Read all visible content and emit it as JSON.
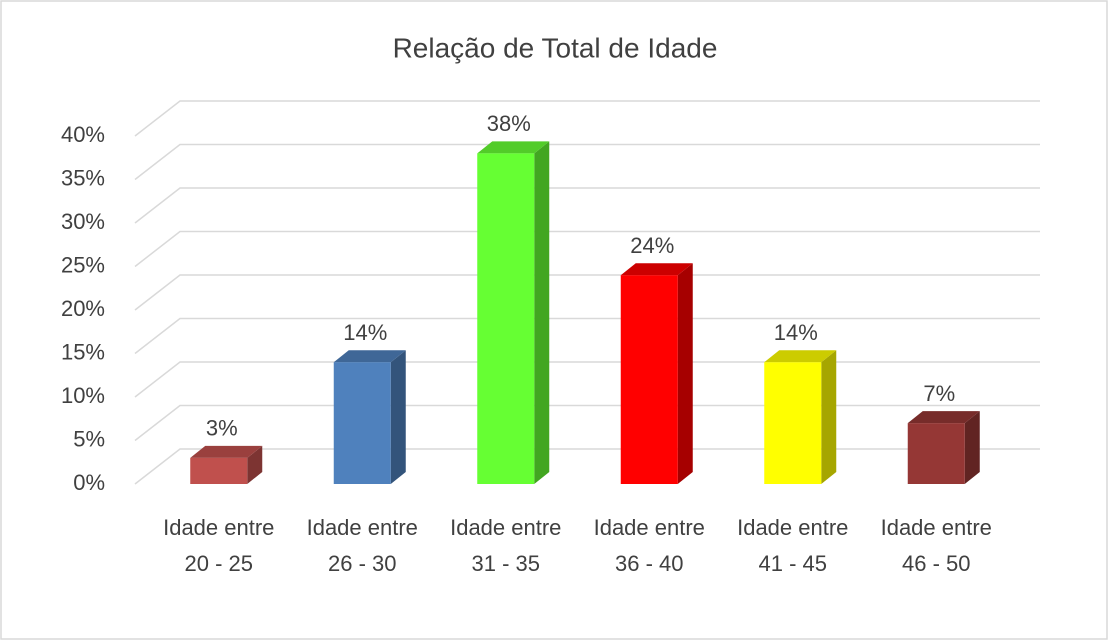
{
  "chart_data": {
    "type": "bar3d",
    "title": "Relação de Total de Idade",
    "categories": [
      "Idade entre 20 - 25",
      "Idade entre 26 - 30",
      "Idade entre 31 - 35",
      "Idade entre 36 - 40",
      "Idade entre 41 - 45",
      "Idade entre 46 - 50"
    ],
    "values": [
      3,
      14,
      38,
      24,
      14,
      7
    ],
    "value_labels": [
      "3%",
      "14%",
      "38%",
      "24%",
      "14%",
      "7%"
    ],
    "colors": [
      "#c0504d",
      "#4f81bd",
      "#66ff33",
      "#ff0000",
      "#ffff00",
      "#953735"
    ],
    "ylim": [
      0,
      40
    ],
    "yticks": [
      {
        "value": 0,
        "label": "0%"
      },
      {
        "value": 5,
        "label": "5%"
      },
      {
        "value": 10,
        "label": "10%"
      },
      {
        "value": 15,
        "label": "15%"
      },
      {
        "value": 20,
        "label": "20%"
      },
      {
        "value": 25,
        "label": "25%"
      },
      {
        "value": 30,
        "label": "30%"
      },
      {
        "value": 35,
        "label": "35%"
      },
      {
        "value": 40,
        "label": "40%"
      }
    ],
    "grid": true
  }
}
